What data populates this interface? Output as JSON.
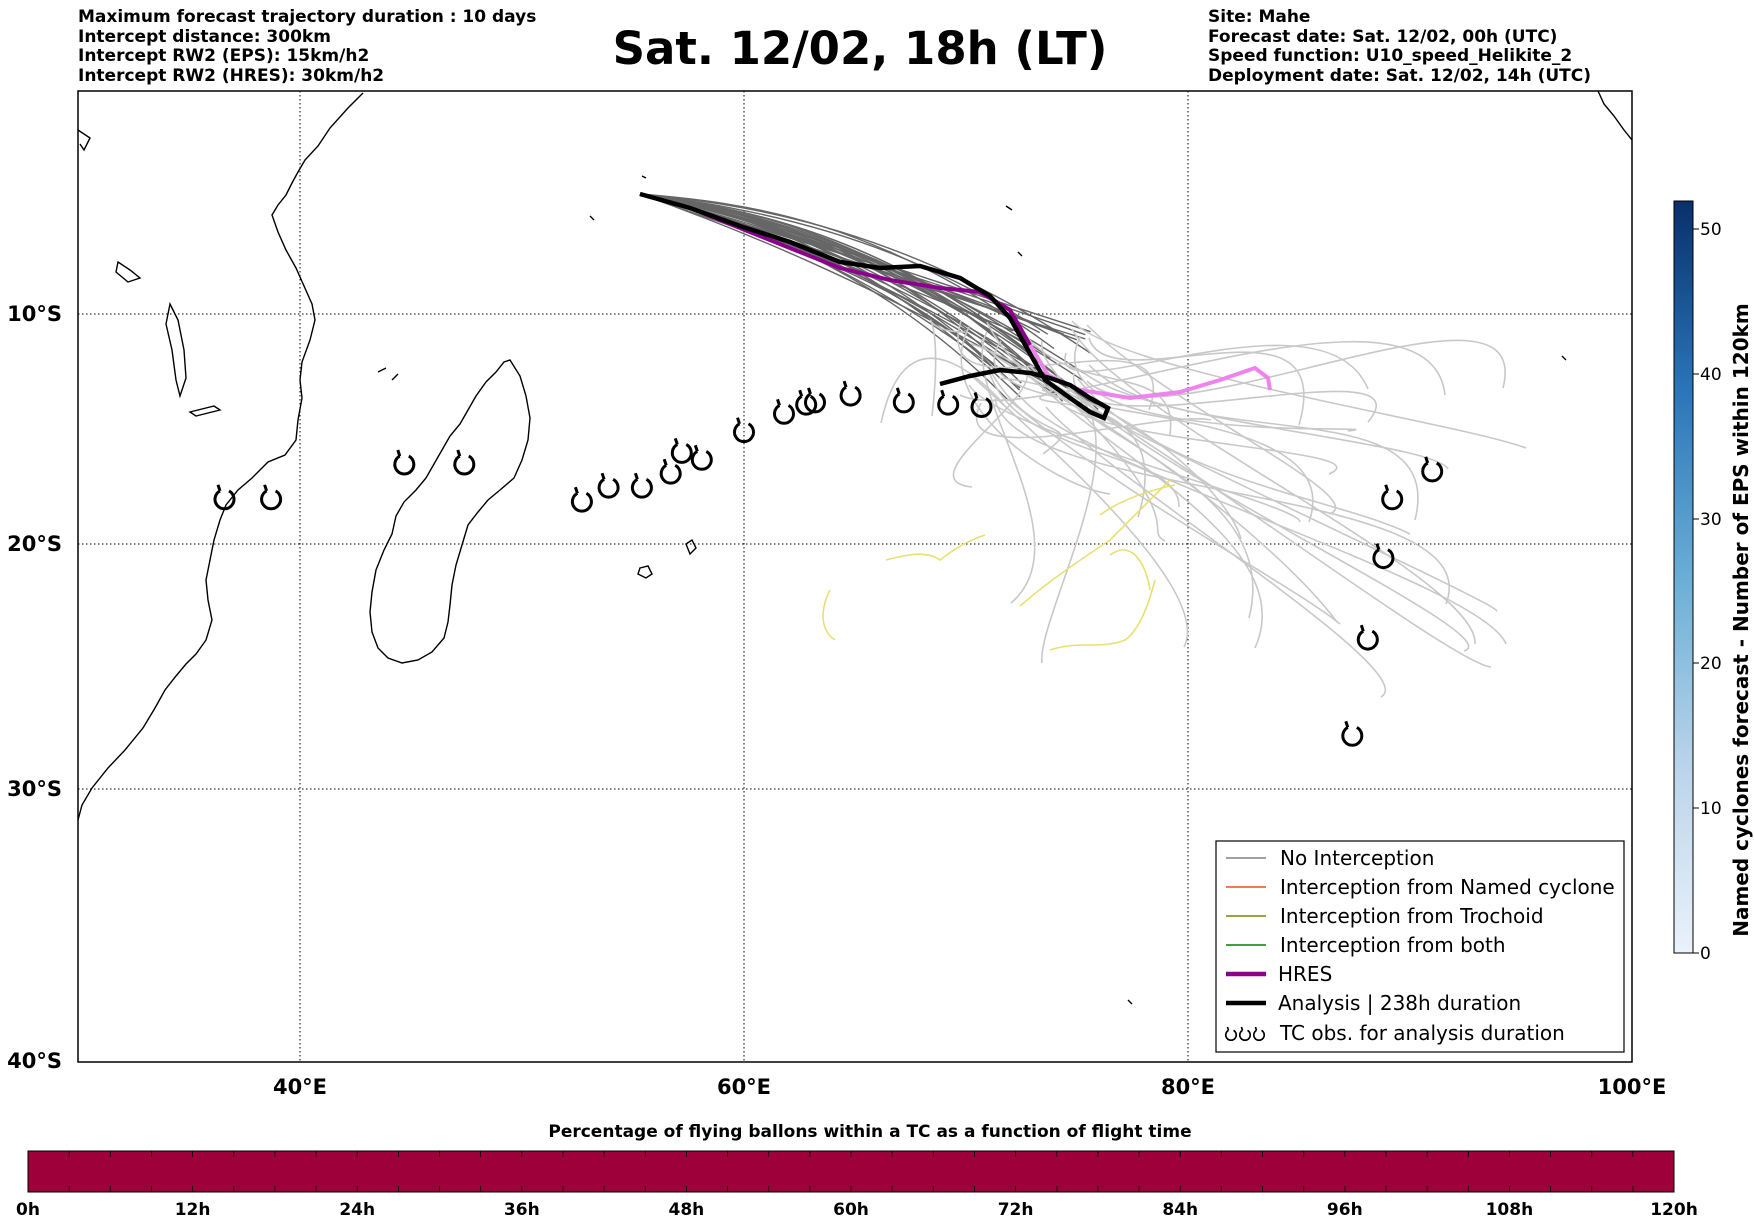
{
  "title": "Sat. 12/02, 18h (LT)",
  "header_left": [
    "Maximum forecast trajectory duration : 10 days",
    "Intercept distance: 300km",
    "Intercept RW2 (EPS):  15km/h2",
    "Intercept RW2 (HRES): 30km/h2"
  ],
  "header_right": [
    "Site: Mahe",
    "Forecast date: Sat. 12/02, 00h (UTC)",
    "Speed function: U10_speed_Helikite_2",
    "Deployment date: Sat. 12/02, 14h (UTC)"
  ],
  "map": {
    "lon_ticks": [
      "40°E",
      "60°E",
      "80°E",
      "100°E"
    ],
    "lat_ticks": [
      "10°S",
      "20°S",
      "30°S",
      "40°S"
    ],
    "lon_range": [
      30,
      100
    ],
    "lat_range": [
      -40,
      -0.5
    ],
    "grid": "dotted"
  },
  "legend": {
    "placement": "lower-right",
    "items": [
      {
        "label": "No Interception",
        "color": "#808080"
      },
      {
        "label": "Interception from Named cyclone",
        "color": "#e8501a"
      },
      {
        "label": "Interception from Trochoid",
        "color": "#808000"
      },
      {
        "label": "Interception from both",
        "color": "#008000"
      },
      {
        "label": "HRES",
        "color": "#8b008b"
      },
      {
        "label": "Analysis | 238h duration",
        "color": "#000000"
      },
      {
        "label": "TC obs. for analysis duration",
        "icon": "cyclone-symbol-icon"
      }
    ]
  },
  "colorbar_right": {
    "label": "Named cyclones forecast - Number of EPS within 120km",
    "ticks": [
      "0",
      "10",
      "20",
      "30",
      "40",
      "50"
    ],
    "range": [
      0,
      52
    ],
    "colors": [
      "#e8f1fa",
      "#08306b"
    ]
  },
  "colorbar_bottom": {
    "label": "Percentage of flying ballons within a TC as a function of flight time",
    "ticks": [
      "0h",
      "12h",
      "24h",
      "36h",
      "48h",
      "60h",
      "72h",
      "84h",
      "96h",
      "108h",
      "120h"
    ],
    "fill_color": "#9e003a"
  },
  "tc_observations": [
    [
      36.6,
      -18.1
    ],
    [
      38.7,
      -18.1
    ],
    [
      44.7,
      -16.6
    ],
    [
      47.4,
      -16.6
    ],
    [
      52.7,
      -18.2
    ],
    [
      53.9,
      -17.6
    ],
    [
      55.4,
      -17.6
    ],
    [
      56.7,
      -17.0
    ],
    [
      57.2,
      -16.1
    ],
    [
      58.1,
      -16.4
    ],
    [
      60.0,
      -15.2
    ],
    [
      61.8,
      -14.4
    ],
    [
      62.8,
      -14.0
    ],
    [
      63.2,
      -13.9
    ],
    [
      64.8,
      -13.6
    ],
    [
      67.2,
      -13.9
    ],
    [
      69.2,
      -14.0
    ],
    [
      70.7,
      -14.1
    ],
    [
      91.0,
      -16.9
    ],
    [
      89.2,
      -18.1
    ],
    [
      88.8,
      -20.6
    ],
    [
      88.1,
      -24.0
    ],
    [
      87.4,
      -27.9
    ]
  ]
}
